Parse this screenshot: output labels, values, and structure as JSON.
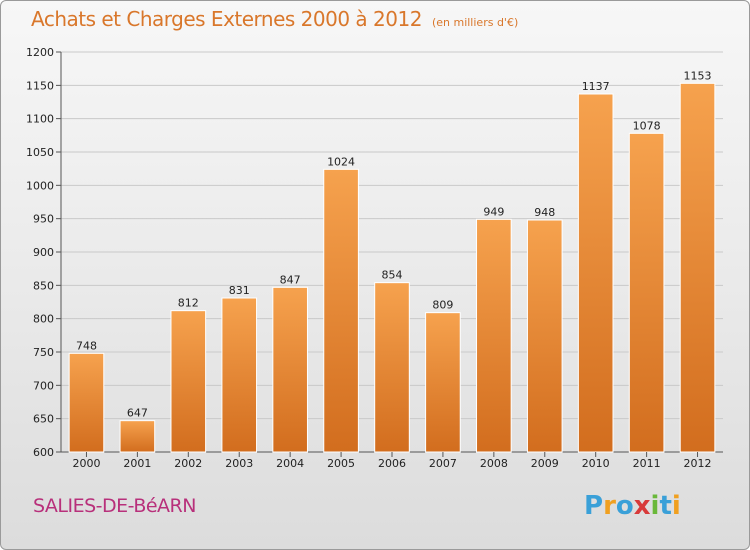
{
  "title": "Achats et Charges Externes 2000 à 2012",
  "unit": "(en milliers d'€)",
  "commune": "SALIES-DE-BéARN",
  "logo": {
    "letters": [
      "P",
      "r",
      "o",
      "x",
      "i",
      "t",
      "i"
    ],
    "colors": [
      "#3aa0d8",
      "#f0a020",
      "#3aa0d8",
      "#d83a3a",
      "#6ab83a",
      "#3aa0d8",
      "#f0a020"
    ]
  },
  "colors": {
    "bar_light": "#f6a24e",
    "bar_dark": "#d26d1e",
    "grid": "#c9c9c9",
    "accent": "#d9772b",
    "commune": "#b8307b"
  },
  "chart_data": {
    "type": "bar",
    "categories": [
      "2000",
      "2001",
      "2002",
      "2003",
      "2004",
      "2005",
      "2006",
      "2007",
      "2008",
      "2009",
      "2010",
      "2011",
      "2012"
    ],
    "values": [
      748,
      647,
      812,
      831,
      847,
      1024,
      854,
      809,
      949,
      948,
      1137,
      1078,
      1153
    ],
    "title": "Achats et Charges Externes 2000 à 2012",
    "xlabel": "",
    "ylabel": "",
    "ylim": [
      600,
      1200
    ],
    "yticks": [
      600,
      650,
      700,
      750,
      800,
      850,
      900,
      950,
      1000,
      1050,
      1100,
      1150,
      1200
    ],
    "grid": true,
    "legend": "none"
  }
}
